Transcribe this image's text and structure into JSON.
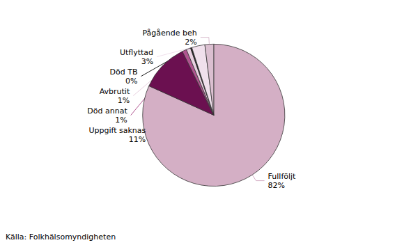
{
  "chart_data": {
    "type": "pie",
    "categories": [
      "Fullföljt",
      "Uppgift saknas",
      "Död annat",
      "Avbrutit",
      "Död TB",
      "Utflyttad",
      "Pågående beh"
    ],
    "values": [
      82,
      11,
      1,
      1,
      0.3,
      3,
      2
    ],
    "value_labels": [
      "82%",
      "11%",
      "1%",
      "1%",
      "0%",
      "3%",
      "2%"
    ],
    "colors": [
      "#d4afc5",
      "#6b1050",
      "#b05490",
      "#e8d0e0",
      "#1c1c1c",
      "#f0e0ec",
      "#dbbfd0"
    ],
    "data_labels": true,
    "legend": false,
    "annotations": [
      "Källa: Folkhälsomyndigheten"
    ]
  }
}
